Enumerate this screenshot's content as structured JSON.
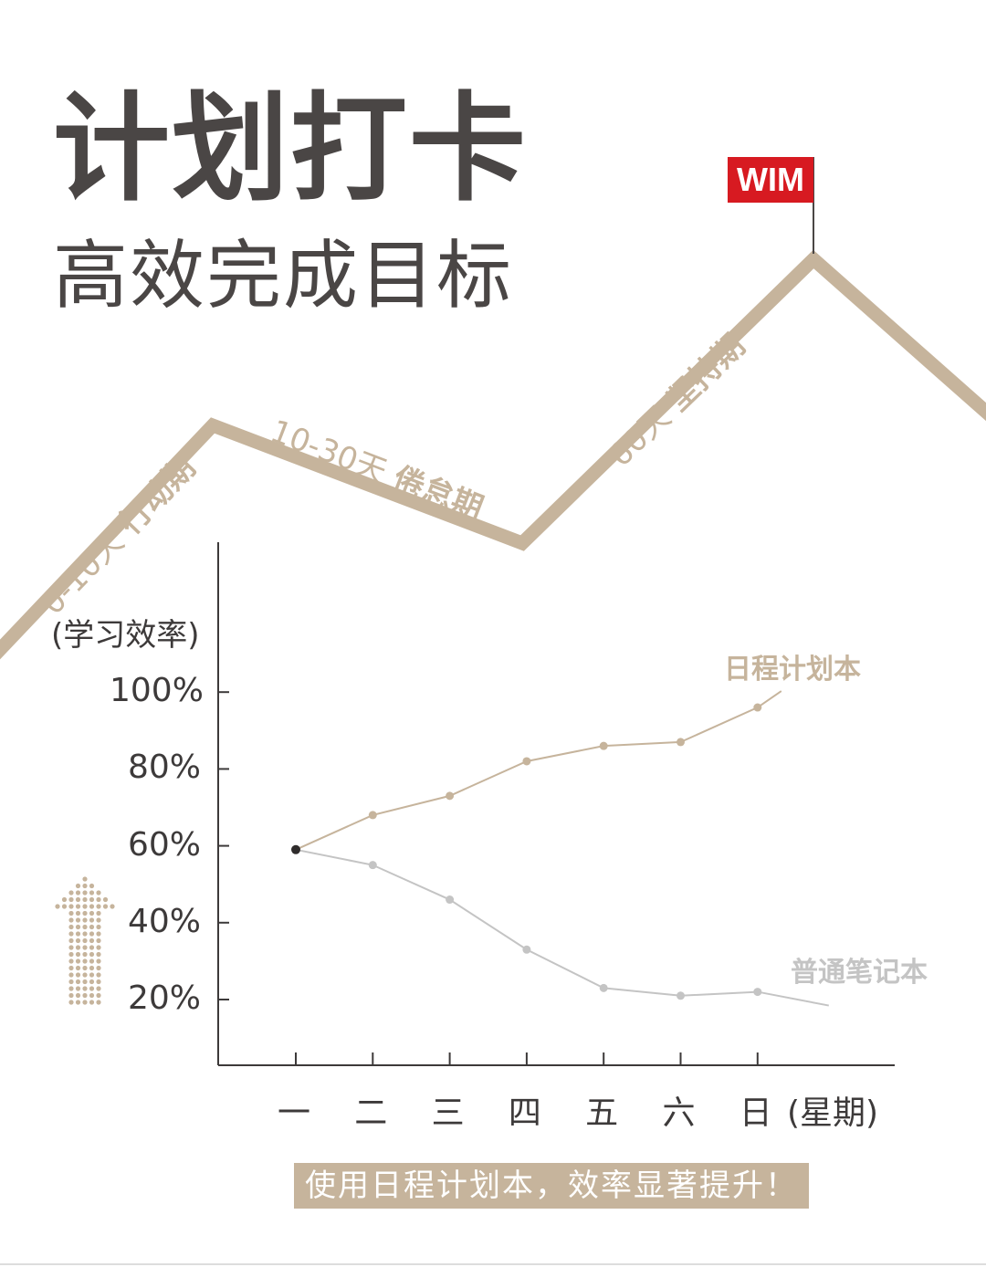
{
  "header": {
    "title": "计划打卡",
    "subtitle": "高效完成目标"
  },
  "brand": {
    "logo_text": "WIM"
  },
  "stages": [
    {
      "days": "0-10天",
      "name": "行动期"
    },
    {
      "days": "10-30天",
      "name": "倦怠期"
    },
    {
      "days": "60天",
      "name": "坚持期"
    }
  ],
  "colors": {
    "accent": "#c6b49c",
    "gray_series": "#c4c4c4",
    "text_dark": "#4a4645",
    "brand_red": "#d71a21"
  },
  "chart_data": {
    "type": "line",
    "ylabel": "(学习效率)",
    "xlabel": "(星期)",
    "categories": [
      "一",
      "二",
      "三",
      "四",
      "五",
      "六",
      "日"
    ],
    "yticks": [
      "100%",
      "80%",
      "60%",
      "40%",
      "20%"
    ],
    "ylim": [
      10,
      110
    ],
    "series": [
      {
        "name": "日程计划本",
        "values": [
          59,
          68,
          73,
          82,
          86,
          87,
          96
        ],
        "color": "#c6b49c"
      },
      {
        "name": "普通笔记本",
        "values": [
          59,
          55,
          46,
          33,
          23,
          21,
          22
        ],
        "color": "#c4c4c4"
      }
    ],
    "grid": false
  },
  "footer": {
    "banner": "使用日程计划本，效率显著提升！"
  }
}
